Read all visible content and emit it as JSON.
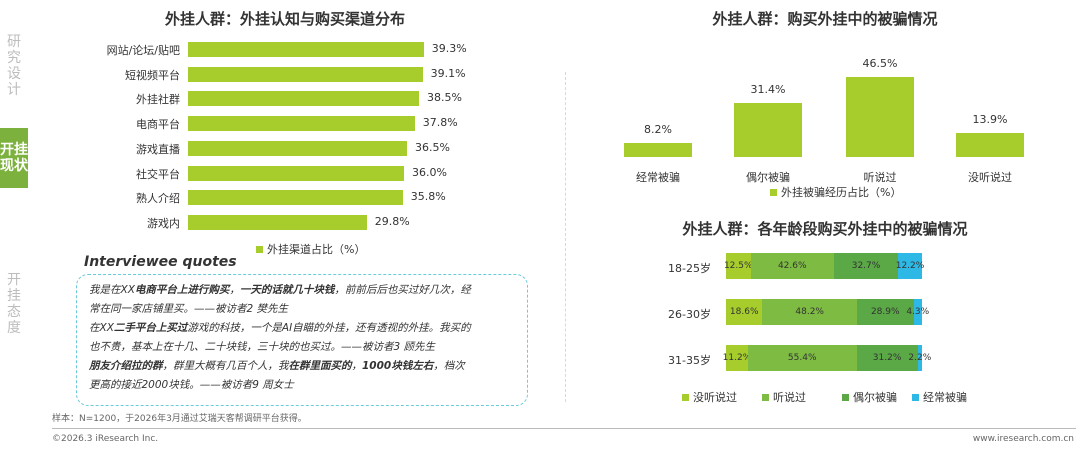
{
  "sidebar": {
    "items": [
      "研究设计",
      "开挂现状",
      "开挂态度"
    ]
  },
  "left_chart": {
    "title": "外挂人群：外挂认知与购买渠道分布",
    "legend": "外挂渠道占比（%）",
    "color": "#a7cd2d"
  },
  "quotes": {
    "title": "Interviewee quotes",
    "lines": [
      [
        {
          "t": "我是在XX"
        },
        {
          "t": "电商平台上进行购买",
          "b": true
        },
        {
          "t": "，"
        },
        {
          "t": "一天的话就几十块钱",
          "b": true
        },
        {
          "t": "，前前后后也买过好几次，经"
        }
      ],
      [
        {
          "t": "常在同一家店铺里买。——被访者2 樊先生"
        }
      ],
      [
        {
          "t": "在XX"
        },
        {
          "t": "二手平台上买过",
          "b": true
        },
        {
          "t": "游戏的科技，一个是AI自瞄的外挂，还有透视的外挂。我买的"
        }
      ],
      [
        {
          "t": "也不贵，基本上在十几、二十块钱，三十块的也买过。——被访者3 顾先生"
        }
      ],
      [
        {
          "t": "朋友介绍拉的群",
          "b": true
        },
        {
          "t": "，群里大概有几百个人，我"
        },
        {
          "t": "在群里面买的",
          "b": true
        },
        {
          "t": "，"
        },
        {
          "t": "1000块钱左右",
          "b": true
        },
        {
          "t": "，档次"
        }
      ],
      [
        {
          "t": "更高的接近2000块钱。——被访者9 周女士"
        }
      ]
    ]
  },
  "right_top_chart": {
    "title": "外挂人群：购买外挂中的被骗情况",
    "legend": "外挂被骗经历占比（%）"
  },
  "right_bottom_chart": {
    "title": "外挂人群：各年龄段购买外挂中的被骗情况",
    "colors": [
      "#a7cd2d",
      "#7dbb42",
      "#5aa846",
      "#2eb8e6"
    ]
  },
  "chart_data": [
    {
      "type": "bar",
      "orientation": "horizontal",
      "title": "外挂人群：外挂认知与购买渠道分布",
      "categories": [
        "网站/论坛/贴吧",
        "短视频平台",
        "外挂社群",
        "电商平台",
        "游戏直播",
        "社交平台",
        "熟人介绍",
        "游戏内"
      ],
      "values": [
        39.3,
        39.1,
        38.5,
        37.8,
        36.5,
        36.0,
        35.8,
        29.8
      ],
      "labels": [
        "39.3%",
        "39.1%",
        "38.5%",
        "37.8%",
        "36.5%",
        "36.0%",
        "35.8%",
        "29.8%"
      ],
      "series_name": "外挂渠道占比（%）",
      "legend_position": "bottom"
    },
    {
      "type": "bar",
      "orientation": "vertical",
      "title": "外挂人群：购买外挂中的被骗情况",
      "categories": [
        "经常被骗",
        "偶尔被骗",
        "听说过",
        "没听说过"
      ],
      "values": [
        8.2,
        31.4,
        46.5,
        13.9
      ],
      "labels": [
        "8.2%",
        "31.4%",
        "46.5%",
        "13.9%"
      ],
      "series_name": "外挂被骗经历占比（%）",
      "legend_position": "bottom"
    },
    {
      "type": "bar",
      "orientation": "horizontal",
      "stacked": true,
      "title": "外挂人群：各年龄段购买外挂中的被骗情况",
      "categories": [
        "18-25岁",
        "26-30岁",
        "31-35岁"
      ],
      "series": [
        {
          "name": "没听说过",
          "values": [
            12.5,
            18.6,
            11.2
          ],
          "labels": [
            "12.5%",
            "18.6%",
            "11.2%"
          ]
        },
        {
          "name": "听说过",
          "values": [
            42.6,
            48.2,
            55.4
          ],
          "labels": [
            "42.6%",
            "48.2%",
            "55.4%"
          ]
        },
        {
          "name": "偶尔被骗",
          "values": [
            32.7,
            28.9,
            31.2
          ],
          "labels": [
            "32.7%",
            "28.9%",
            "31.2%"
          ]
        },
        {
          "name": "经常被骗",
          "values": [
            12.2,
            4.3,
            2.2
          ],
          "labels": [
            "12.2%",
            "4.3%",
            "2.2%"
          ]
        }
      ],
      "legend_position": "bottom"
    }
  ],
  "footer": {
    "note": "样本：N=1200，于2026年3月通过艾瑞天客帮调研平台获得。",
    "copyright": "©2026.3 iResearch Inc.",
    "url": "www.iresearch.com.cn"
  }
}
